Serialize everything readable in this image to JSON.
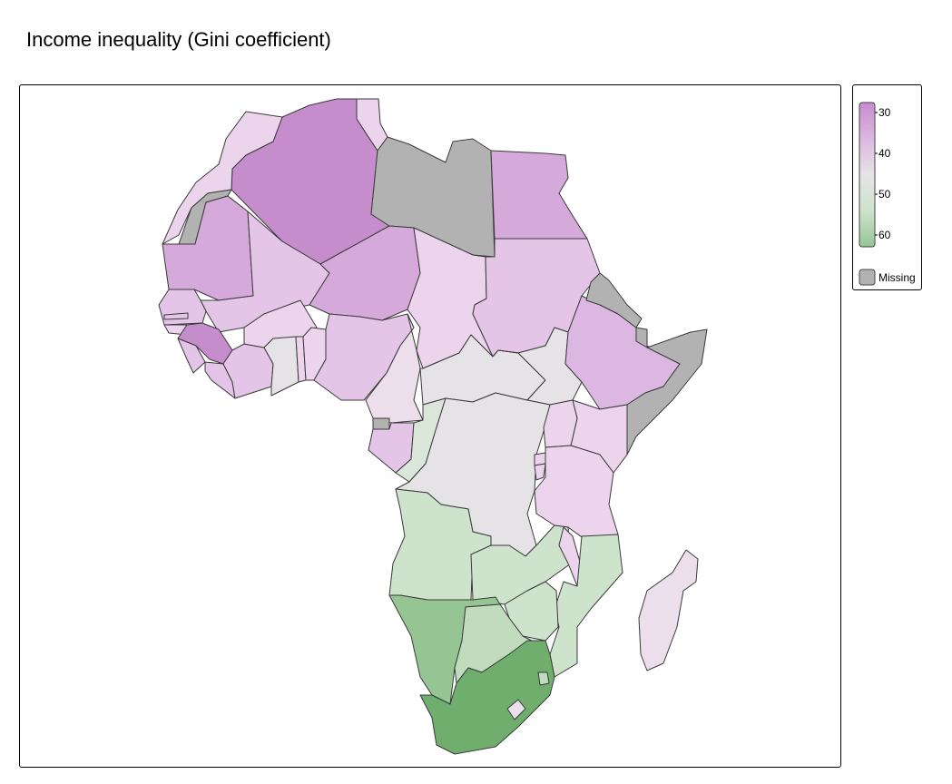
{
  "title": "Income inequality (Gini coefficient)",
  "legend": {
    "ticks": [
      "30",
      "40",
      "50",
      "60"
    ],
    "missing_label": "Missing"
  },
  "colors": {
    "missing": "#b2b2b2",
    "c29": "#c68dcd",
    "c32": "#d5a9da",
    "c34": "#dcb7e1",
    "c36": "#e4c5e7",
    "c38": "#ebd4ec",
    "c41": "#ecdfeb",
    "c44": "#e6e3e6",
    "c49": "#d9e6d8",
    "c51": "#cde3cb",
    "c54": "#c0dcbd",
    "c59": "#96c594",
    "c63": "#6fae6c"
  }
}
